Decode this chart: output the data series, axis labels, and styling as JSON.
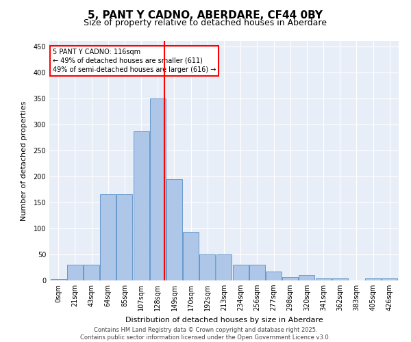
{
  "title": "5, PANT Y CADNO, ABERDARE, CF44 0BY",
  "subtitle": "Size of property relative to detached houses in Aberdare",
  "xlabel": "Distribution of detached houses by size in Aberdare",
  "ylabel": "Number of detached properties",
  "bar_labels": [
    "0sqm",
    "21sqm",
    "43sqm",
    "64sqm",
    "85sqm",
    "107sqm",
    "128sqm",
    "149sqm",
    "170sqm",
    "192sqm",
    "213sqm",
    "234sqm",
    "256sqm",
    "277sqm",
    "298sqm",
    "320sqm",
    "341sqm",
    "362sqm",
    "383sqm",
    "405sqm",
    "426sqm"
  ],
  "bar_values": [
    2,
    30,
    30,
    165,
    165,
    287,
    350,
    195,
    93,
    50,
    50,
    30,
    30,
    17,
    6,
    10,
    4,
    4,
    0,
    4,
    4
  ],
  "bar_color": "#aec6e8",
  "bar_edge_color": "#6699cc",
  "vline_x": 6.42,
  "vline_color": "red",
  "annotation_text": "5 PANT Y CADNO: 116sqm\n← 49% of detached houses are smaller (611)\n49% of semi-detached houses are larger (616) →",
  "annotation_box_color": "white",
  "annotation_box_edge": "red",
  "ylim": [
    0,
    460
  ],
  "yticks": [
    0,
    50,
    100,
    150,
    200,
    250,
    300,
    350,
    400,
    450
  ],
  "background_color": "#e8eef8",
  "footer": "Contains HM Land Registry data © Crown copyright and database right 2025.\nContains public sector information licensed under the Open Government Licence v3.0.",
  "title_fontsize": 11,
  "subtitle_fontsize": 9,
  "xlabel_fontsize": 8,
  "ylabel_fontsize": 8,
  "annot_fontsize": 7,
  "tick_fontsize": 7
}
